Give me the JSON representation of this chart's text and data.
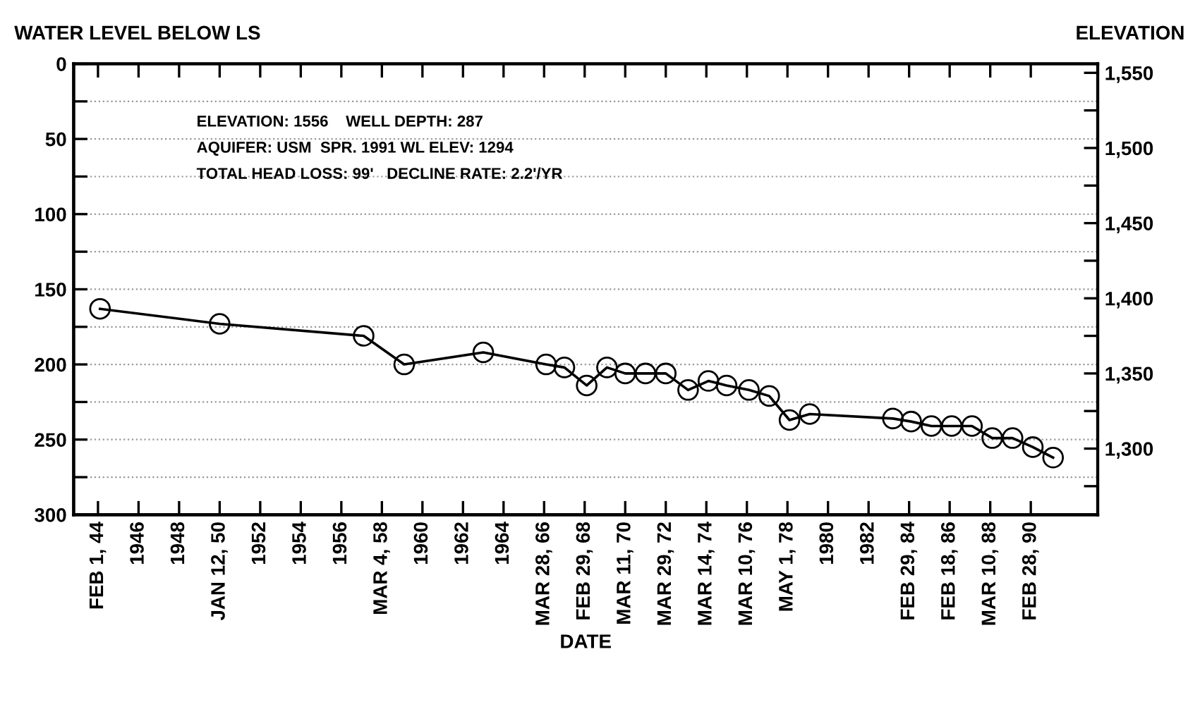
{
  "chart_data": {
    "type": "line",
    "ylabel": "WATER LEVEL BELOW LS",
    "y2label": "ELEVATION",
    "xlabel": "DATE",
    "annotations": [
      "ELEVATION: 1556    WELL DEPTH: 287",
      "AQUIFER: USM  SPR. 1991 WL ELEV: 1294",
      "TOTAL HEAD LOSS: 99'   DECLINE RATE: 2.2'/YR"
    ],
    "series": [
      {
        "color": "#000000",
        "x": [
          1944.1,
          1950.0,
          1957.1,
          1959.1,
          1963.0,
          1966.1,
          1967.0,
          1968.1,
          1969.1,
          1970.0,
          1971.0,
          1972.0,
          1973.1,
          1974.1,
          1975.0,
          1976.1,
          1977.1,
          1978.1,
          1979.1,
          1983.2,
          1984.1,
          1985.1,
          1986.1,
          1987.1,
          1988.1,
          1989.1,
          1990.1,
          1991.1
        ],
        "values": [
          163,
          173,
          181,
          200,
          192,
          200,
          202,
          214,
          202,
          206,
          206,
          206,
          217,
          211,
          214,
          217,
          221,
          237,
          233,
          236,
          238,
          241,
          241,
          241,
          249,
          249,
          255,
          262
        ]
      }
    ],
    "marker": "circle",
    "line_style": "solid",
    "grid": "y",
    "xlim": [
      1942.8,
      1993.3
    ],
    "xticks": [
      {
        "value": 1944,
        "label": "FEB 1, 44"
      },
      1946,
      1948,
      {
        "value": 1950,
        "label": "JAN 12, 50"
      },
      1952,
      1954,
      1956,
      {
        "value": 1958,
        "label": "MAR 4, 58"
      },
      1960,
      1962,
      1964,
      {
        "value": 1966,
        "label": "MAR 28, 66"
      },
      {
        "value": 1968,
        "label": "FEB 29, 68"
      },
      {
        "value": 1970,
        "label": "MAR 11, 70"
      },
      {
        "value": 1972,
        "label": "MAR 29, 72"
      },
      {
        "value": 1974,
        "label": "MAR 14, 74"
      },
      {
        "value": 1976,
        "label": "MAR 10, 76"
      },
      {
        "value": 1978,
        "label": "MAY 1, 78"
      },
      1980,
      1982,
      {
        "value": 1984,
        "label": "FEB 29, 84"
      },
      {
        "value": 1986,
        "label": "FEB 18, 86"
      },
      {
        "value": 1988,
        "label": "MAR 10, 88"
      },
      {
        "value": 1990,
        "label": "FEB 28, 90"
      }
    ],
    "ylim": [
      300,
      0
    ],
    "yticks": [
      0,
      {
        "value": 25,
        "label": null
      },
      50,
      {
        "value": 75,
        "label": null
      },
      100,
      {
        "value": 125,
        "label": null
      },
      150,
      {
        "value": 175,
        "label": null
      },
      200,
      {
        "value": 225,
        "label": null
      },
      250,
      {
        "value": 275,
        "label": null
      },
      300
    ],
    "y2lim": [
      1256,
      1556
    ],
    "y2ticks": [
      {
        "value": 1550,
        "label": "1,550"
      },
      {
        "value": 1525,
        "label": null
      },
      {
        "value": 1500,
        "label": "1,500"
      },
      {
        "value": 1475,
        "label": null
      },
      {
        "value": 1450,
        "label": "1,450"
      },
      {
        "value": 1425,
        "label": null
      },
      {
        "value": 1400,
        "label": "1,400"
      },
      {
        "value": 1375,
        "label": null
      },
      {
        "value": 1350,
        "label": "1,350"
      },
      {
        "value": 1325,
        "label": null
      },
      {
        "value": 1300,
        "label": "1,300"
      },
      {
        "value": 1275,
        "label": null
      }
    ]
  }
}
